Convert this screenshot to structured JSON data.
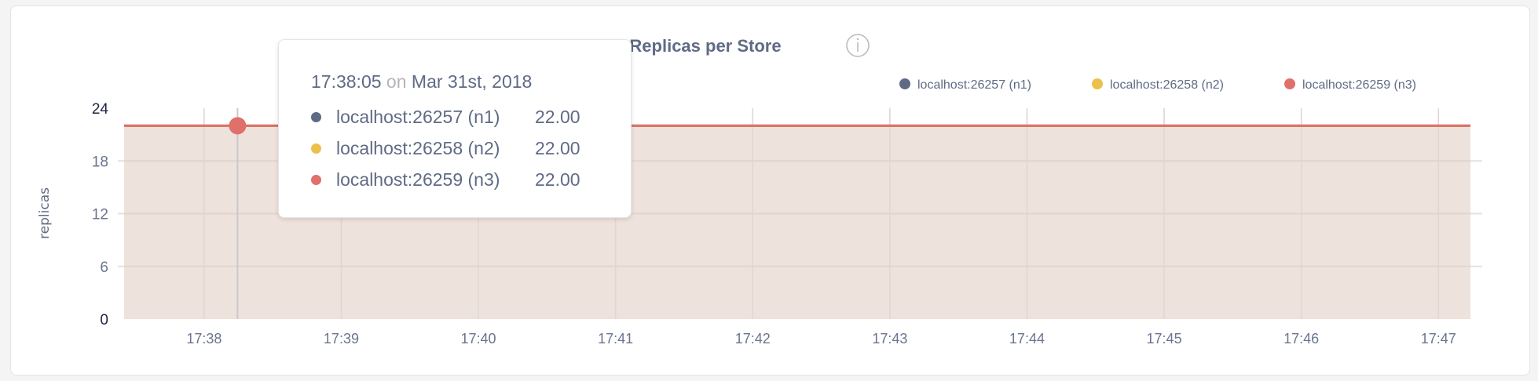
{
  "chart_data": {
    "type": "area",
    "title": "Replicas per Store",
    "title_icon": "info-icon",
    "ylabel": "replicas",
    "xlabel": "",
    "ylim": [
      0,
      24
    ],
    "yticks": [
      "0",
      "6",
      "12",
      "18",
      "24"
    ],
    "xlim": [
      "17:37:25",
      "17:47:14"
    ],
    "xticks": [
      "17:38",
      "17:39",
      "17:40",
      "17:41",
      "17:42",
      "17:43",
      "17:44",
      "17:45",
      "17:46",
      "17:47"
    ],
    "grid": true,
    "legend_position": "top-right",
    "series": [
      {
        "name": "localhost:26257 (n1)",
        "color": "#5f6b85",
        "x": [
          "17:37:25",
          "17:47:14"
        ],
        "values": [
          22,
          22
        ]
      },
      {
        "name": "localhost:26258 (n2)",
        "color": "#ecc04a",
        "x": [
          "17:37:25",
          "17:47:14"
        ],
        "values": [
          22,
          22
        ]
      },
      {
        "name": "localhost:26259 (n3)",
        "color": "#e0706a",
        "x": [
          "17:37:25",
          "17:47:14"
        ],
        "values": [
          22,
          22
        ]
      }
    ],
    "area_fill": "#eddfd9",
    "tooltip": {
      "time": "17:38:05",
      "on": "on",
      "date": "Mar 31st, 2018",
      "rows": [
        {
          "label": "localhost:26257 (n1)",
          "value": "22.00",
          "color": "#5f6b85"
        },
        {
          "label": "localhost:26258 (n2)",
          "value": "22.00",
          "color": "#ecc04a"
        },
        {
          "label": "localhost:26259 (n3)",
          "value": "22.00",
          "color": "#e0706a"
        }
      ]
    }
  }
}
